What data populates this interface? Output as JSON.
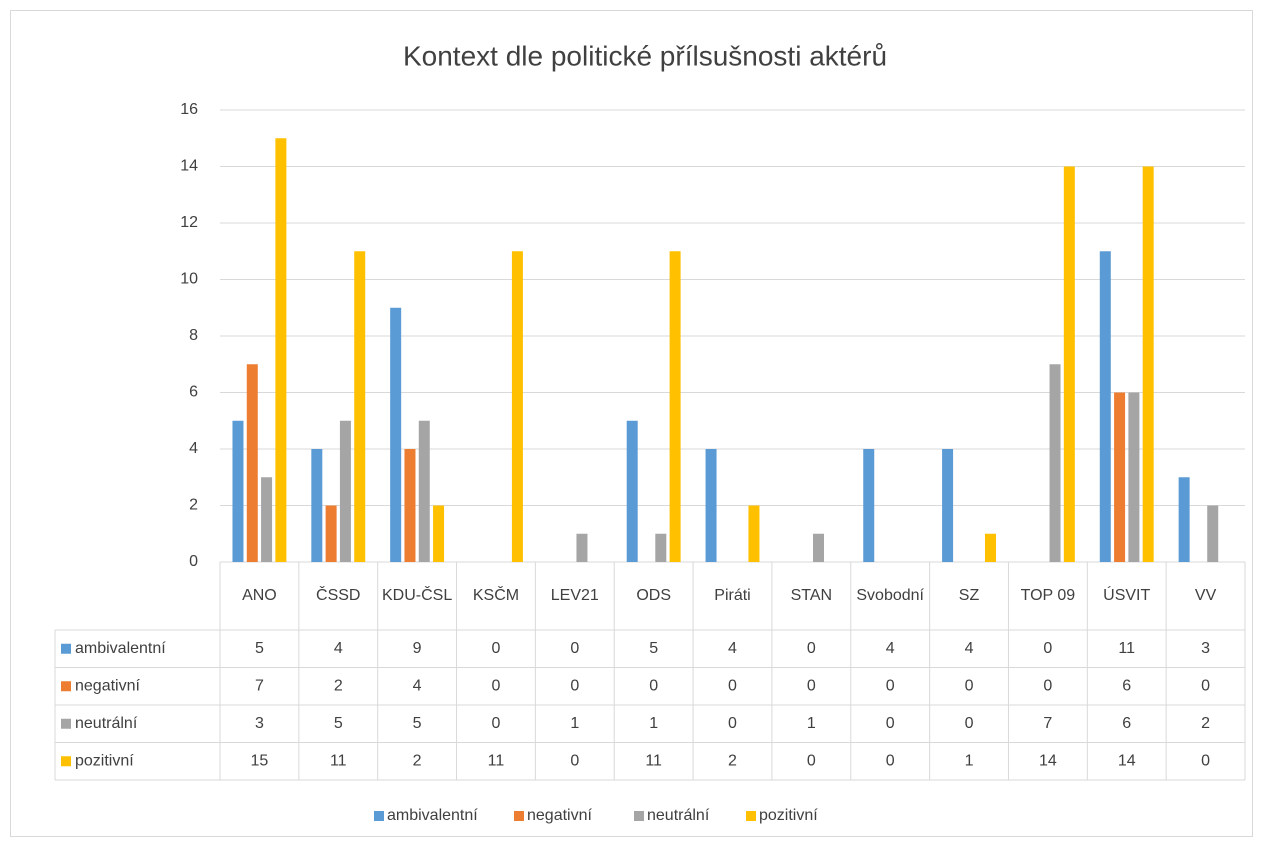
{
  "chart_data": {
    "type": "bar",
    "title": "Kontext dle politické přílsušnosti aktérů",
    "categories": [
      "ANO",
      "ČSSD",
      "KDU-ČSL",
      "KSČM",
      "LEV21",
      "ODS",
      "Piráti",
      "STAN",
      "Svobodní",
      "SZ",
      "TOP 09",
      "ÚSVIT",
      "VV"
    ],
    "series": [
      {
        "name": "ambivalentní",
        "color": "#5b9bd5",
        "values": [
          5,
          4,
          9,
          0,
          0,
          5,
          4,
          0,
          4,
          4,
          0,
          11,
          3
        ]
      },
      {
        "name": "negativní",
        "color": "#ed7d31",
        "values": [
          7,
          2,
          4,
          0,
          0,
          0,
          0,
          0,
          0,
          0,
          0,
          6,
          0
        ]
      },
      {
        "name": "neutrální",
        "color": "#a5a5a5",
        "values": [
          3,
          5,
          5,
          0,
          1,
          1,
          0,
          1,
          0,
          0,
          7,
          6,
          2
        ]
      },
      {
        "name": "pozitivní",
        "color": "#ffc000",
        "values": [
          15,
          11,
          2,
          11,
          0,
          11,
          2,
          0,
          0,
          1,
          14,
          14,
          0
        ]
      }
    ],
    "ylim": [
      0,
      16
    ],
    "yticks": [
      0,
      2,
      4,
      6,
      8,
      10,
      12,
      14,
      16
    ],
    "grid": true,
    "data_table": true,
    "legend": "bottom"
  }
}
